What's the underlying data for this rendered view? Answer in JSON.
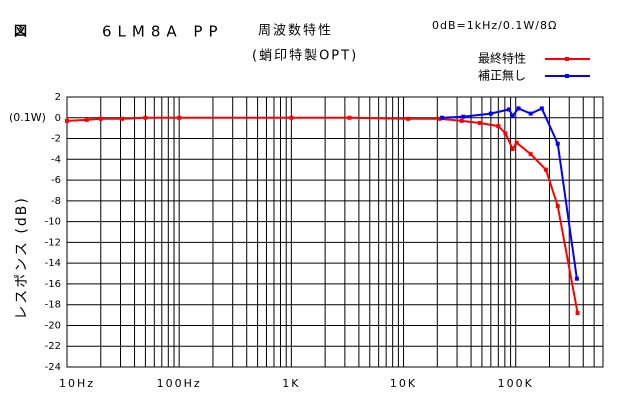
{
  "chart_data": {
    "type": "line",
    "figure_label": "図",
    "title": "6LM8A PP",
    "title2": "周波数特性",
    "subtitle": "(蛸印特製OPT)",
    "condition": "0dB=1kHz/0.1W/8Ω",
    "ylabel": "レスポンス (dB)",
    "annotation": "(0.1W)",
    "log_x": true,
    "grid": true,
    "legend": "upper right",
    "xlim": [
      10,
      600000
    ],
    "ylim": [
      -24,
      2
    ],
    "yticks": [
      2,
      0,
      -2,
      -4,
      -6,
      -8,
      -10,
      -12,
      -14,
      -16,
      -18,
      -20,
      -22,
      -24
    ],
    "xticks": [
      {
        "value": 10,
        "label": "10Hz"
      },
      {
        "value": 100,
        "label": "100Hz"
      },
      {
        "value": 1000,
        "label": "1K"
      },
      {
        "value": 10000,
        "label": "10K"
      },
      {
        "value": 100000,
        "label": "100K"
      }
    ],
    "xticks_minor": [
      20,
      30,
      40,
      50,
      60,
      70,
      80,
      90,
      200,
      300,
      400,
      500,
      600,
      700,
      800,
      900,
      2000,
      3000,
      4000,
      5000,
      6000,
      7000,
      8000,
      9000,
      20000,
      30000,
      40000,
      50000,
      60000,
      70000,
      80000,
      90000,
      200000,
      300000,
      400000,
      500000
    ],
    "series": [
      {
        "name": "最終特性",
        "color": "#ff0000",
        "x": [
          10,
          15,
          20,
          31,
          50,
          100,
          1000,
          3300,
          11000,
          21000,
          33000,
          48000,
          70000,
          81000,
          94000,
          102000,
          136000,
          186000,
          237000,
          356000
        ],
        "values": [
          -0.3,
          -0.2,
          -0.1,
          -0.1,
          0,
          0,
          0,
          0,
          -0.1,
          -0.1,
          -0.3,
          -0.5,
          -0.8,
          -1.5,
          -3.0,
          -2.4,
          -3.5,
          -5.0,
          -8.5,
          -18.8
        ]
      },
      {
        "name": "補正無し",
        "color": "#0000ff",
        "x": [
          22000,
          34000,
          60000,
          87000,
          94000,
          106000,
          136000,
          171000,
          237000,
          351000
        ],
        "values": [
          0,
          0.1,
          0.4,
          0.8,
          0.2,
          0.9,
          0.4,
          0.9,
          -2.5,
          -15.5
        ]
      }
    ]
  }
}
